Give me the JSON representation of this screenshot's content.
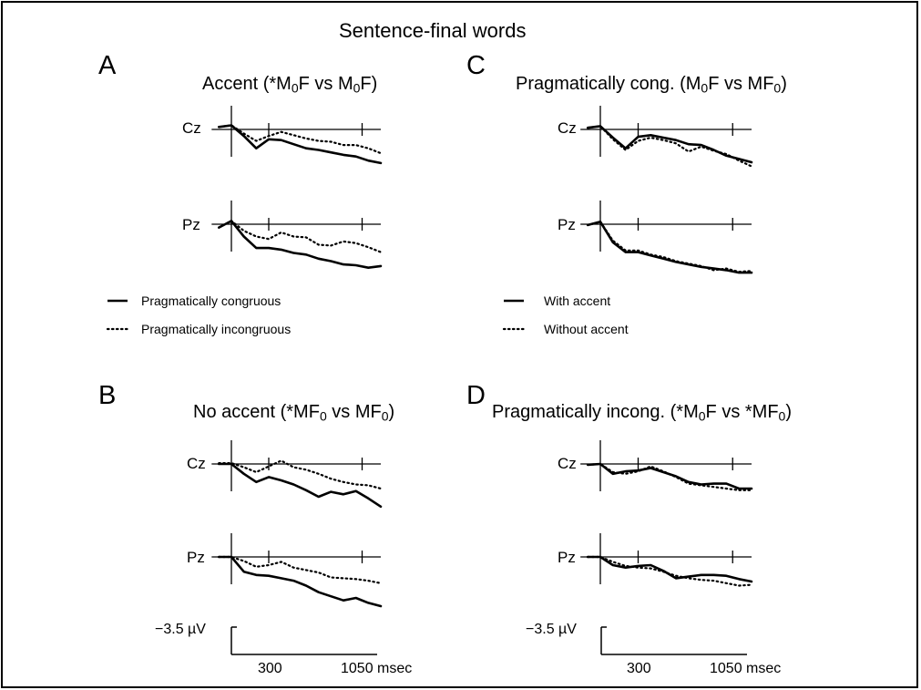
{
  "figure": {
    "title": "Sentence-final words"
  },
  "panels": [
    {
      "letter": "A",
      "title_pre": "Accent (*M",
      "title_a": "F vs M",
      "title_b": "F)",
      "sub": "0"
    },
    {
      "letter": "C",
      "title_pre": "Pragmatically cong. (M",
      "title_a": "F vs MF",
      "title_b": ")",
      "sub": "0"
    },
    {
      "letter": "B",
      "title_pre": "No accent (*MF",
      "title_a": " vs MF",
      "title_b": ")",
      "sub": "0"
    },
    {
      "letter": "D",
      "title_pre": "Pragmatically incong. (*M",
      "title_a": "F vs *MF",
      "title_b": ")",
      "sub": "0"
    }
  ],
  "channels": [
    "Cz",
    "Pz"
  ],
  "legends": {
    "left": [
      "Pragmatically congruous",
      "Pragmatically incongruous"
    ],
    "right": [
      "With accent",
      "Without accent"
    ]
  },
  "scale": {
    "amplitude": "−3.5 µV",
    "tick1": "300",
    "tick2": "1050 msec"
  },
  "chart_data": {
    "type": "line",
    "title": "Sentence-final words",
    "xlabel": "msec",
    "ylabel": "µV",
    "x_ticks": [
      300,
      1050
    ],
    "xlim": [
      -100,
      1200
    ],
    "amplitude_scale": -3.5,
    "time_ms": [
      -100,
      0,
      100,
      200,
      300,
      400,
      500,
      600,
      700,
      800,
      900,
      1000,
      1100,
      1200
    ],
    "panels": [
      {
        "panel": "A",
        "legend": [
          "Pragmatically congruous",
          "Pragmatically incongruous"
        ],
        "channels": [
          {
            "name": "Cz",
            "series": [
              {
                "style": "solid",
                "values": [
                  0.3,
                  0.5,
                  -0.8,
                  -2.3,
                  -1.2,
                  -1.3,
                  -1.8,
                  -2.3,
                  -2.5,
                  -2.8,
                  -3.1,
                  -3.3,
                  -3.8,
                  -4.1
                ]
              },
              {
                "style": "dotted",
                "values": [
                  0.3,
                  0.5,
                  -0.5,
                  -1.4,
                  -0.8,
                  -0.3,
                  -0.7,
                  -1.1,
                  -1.4,
                  -1.5,
                  -1.9,
                  -1.9,
                  -2.3,
                  -2.9
                ]
              }
            ]
          },
          {
            "name": "Pz",
            "series": [
              {
                "style": "solid",
                "values": [
                  -0.4,
                  0.4,
                  -1.5,
                  -2.9,
                  -2.9,
                  -3.1,
                  -3.5,
                  -3.7,
                  -4.2,
                  -4.5,
                  -4.9,
                  -5.0,
                  -5.3,
                  -5.1
                ]
              },
              {
                "style": "dotted",
                "values": [
                  -0.4,
                  0.4,
                  -0.8,
                  -1.5,
                  -1.8,
                  -1.0,
                  -1.5,
                  -1.6,
                  -2.5,
                  -2.6,
                  -2.1,
                  -2.3,
                  -2.8,
                  -3.4
                ]
              }
            ]
          }
        ]
      },
      {
        "panel": "C",
        "legend": [
          "With accent",
          "Without accent"
        ],
        "channels": [
          {
            "name": "Cz",
            "series": [
              {
                "style": "solid",
                "values": [
                  0.2,
                  0.4,
                  -1.0,
                  -2.3,
                  -0.9,
                  -0.7,
                  -1.0,
                  -1.3,
                  -1.8,
                  -1.9,
                  -2.5,
                  -3.2,
                  -3.6,
                  -4.0
                ]
              },
              {
                "style": "dotted",
                "values": [
                  0.2,
                  0.4,
                  -1.2,
                  -2.5,
                  -1.4,
                  -1.0,
                  -1.3,
                  -1.7,
                  -2.7,
                  -2.1,
                  -2.6,
                  -3.0,
                  -3.8,
                  -4.5
                ]
              }
            ]
          },
          {
            "name": "Pz",
            "series": [
              {
                "style": "solid",
                "values": [
                  -0.1,
                  0.3,
                  -2.2,
                  -3.4,
                  -3.4,
                  -3.8,
                  -4.2,
                  -4.6,
                  -4.9,
                  -5.2,
                  -5.4,
                  -5.6,
                  -5.9,
                  -5.9
                ]
              },
              {
                "style": "dotted",
                "values": [
                  -0.1,
                  0.3,
                  -2.0,
                  -3.2,
                  -3.2,
                  -3.7,
                  -4.0,
                  -4.5,
                  -4.8,
                  -5.1,
                  -5.6,
                  -5.4,
                  -5.8,
                  -5.7
                ]
              }
            ]
          }
        ]
      },
      {
        "panel": "B",
        "legend": [
          "Pragmatically congruous",
          "Pragmatically incongruous"
        ],
        "channels": [
          {
            "name": "Cz",
            "series": [
              {
                "style": "solid",
                "values": [
                  0.0,
                  0.0,
                  -1.2,
                  -2.2,
                  -1.6,
                  -2.0,
                  -2.5,
                  -3.2,
                  -4.0,
                  -3.4,
                  -3.7,
                  -3.3,
                  -4.2,
                  -5.2
                ]
              },
              {
                "style": "dotted",
                "values": [
                  0.1,
                  0.1,
                  -0.4,
                  -1.0,
                  -0.3,
                  0.4,
                  -0.4,
                  -0.7,
                  -1.2,
                  -1.8,
                  -2.2,
                  -2.5,
                  -2.6,
                  -3.0
                ]
              }
            ]
          },
          {
            "name": "Pz",
            "series": [
              {
                "style": "solid",
                "values": [
                  0.0,
                  0.0,
                  -1.8,
                  -2.2,
                  -2.3,
                  -2.6,
                  -2.9,
                  -3.5,
                  -4.3,
                  -4.8,
                  -5.3,
                  -5.0,
                  -5.6,
                  -6.0
                ]
              },
              {
                "style": "dotted",
                "values": [
                  0.0,
                  0.0,
                  -0.5,
                  -1.2,
                  -1.0,
                  -0.6,
                  -1.3,
                  -1.6,
                  -1.9,
                  -2.5,
                  -2.6,
                  -2.7,
                  -2.9,
                  -3.2
                ]
              }
            ]
          }
        ]
      },
      {
        "panel": "D",
        "legend": [
          "With accent",
          "Without accent"
        ],
        "channels": [
          {
            "name": "Cz",
            "series": [
              {
                "style": "solid",
                "values": [
                  -0.1,
                  0.0,
                  -1.2,
                  -0.9,
                  -0.8,
                  -0.5,
                  -1.0,
                  -1.5,
                  -2.2,
                  -2.5,
                  -2.4,
                  -2.4,
                  -3.0,
                  -3.0
                ]
              },
              {
                "style": "dotted",
                "values": [
                  -0.1,
                  0.0,
                  -1.0,
                  -1.2,
                  -0.9,
                  -0.3,
                  -0.9,
                  -1.6,
                  -2.4,
                  -2.6,
                  -2.8,
                  -3.0,
                  -3.2,
                  -3.2
                ]
              }
            ]
          },
          {
            "name": "Pz",
            "series": [
              {
                "style": "solid",
                "values": [
                  0.0,
                  0.0,
                  -1.0,
                  -1.3,
                  -1.1,
                  -1.0,
                  -1.7,
                  -2.6,
                  -2.4,
                  -2.2,
                  -2.2,
                  -2.3,
                  -2.7,
                  -3.0
                ]
              },
              {
                "style": "dotted",
                "values": [
                  0.0,
                  0.0,
                  -0.6,
                  -1.1,
                  -1.3,
                  -1.4,
                  -1.8,
                  -2.3,
                  -2.6,
                  -2.8,
                  -2.9,
                  -3.2,
                  -3.5,
                  -3.4
                ]
              }
            ]
          }
        ]
      }
    ]
  }
}
